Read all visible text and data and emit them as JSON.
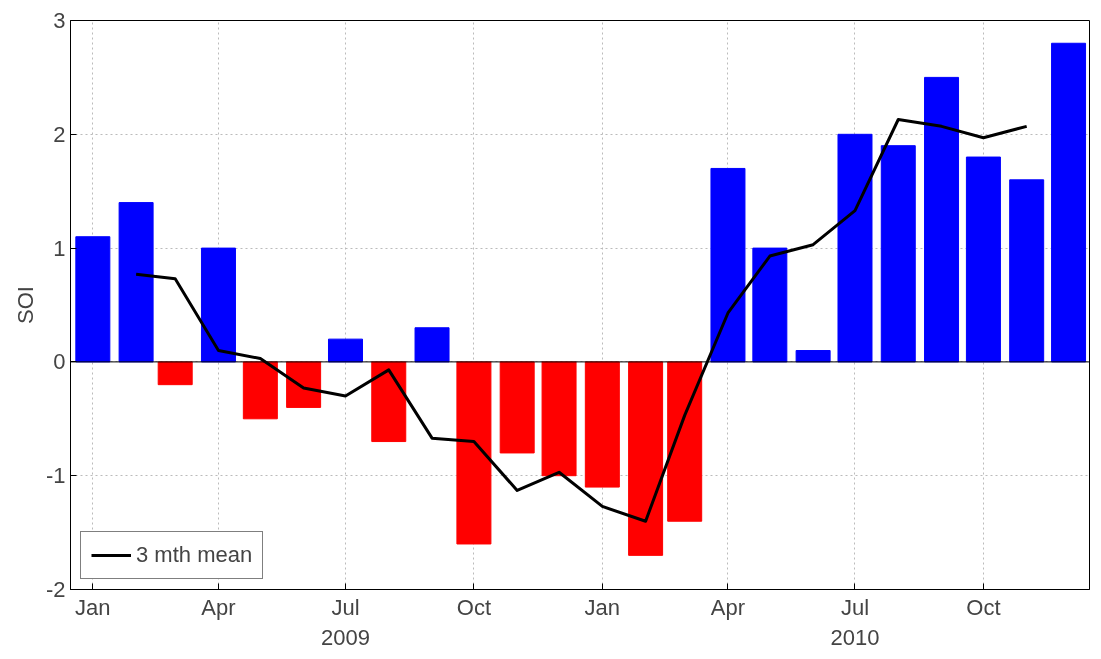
{
  "chart_data": {
    "type": "bar",
    "ylabel": "SOI",
    "x": [
      "2009-01",
      "2009-02",
      "2009-03",
      "2009-04",
      "2009-05",
      "2009-06",
      "2009-07",
      "2009-08",
      "2009-09",
      "2009-10",
      "2009-11",
      "2009-12",
      "2010-01",
      "2010-02",
      "2010-03",
      "2010-04",
      "2010-05",
      "2010-06",
      "2010-07",
      "2010-08",
      "2010-09",
      "2010-10",
      "2010-11",
      "2010-12"
    ],
    "series": [
      {
        "values": [
          1.1,
          1.4,
          -0.2,
          1.0,
          -0.5,
          -0.4,
          0.2,
          -0.7,
          0.3,
          -1.6,
          -0.8,
          -1.0,
          -1.1,
          -1.7,
          -1.4,
          1.7,
          1.0,
          0.1,
          2.0,
          1.9,
          2.5,
          1.8,
          1.6,
          2.8
        ],
        "colors": [
          "#0000ff",
          "#0000ff",
          "#ff0000",
          "#0000ff",
          "#ff0000",
          "#ff0000",
          "#0000ff",
          "#ff0000",
          "#0000ff",
          "#ff0000",
          "#ff0000",
          "#ff0000",
          "#ff0000",
          "#ff0000",
          "#ff0000",
          "#0000ff",
          "#0000ff",
          "#0000ff",
          "#0000ff",
          "#0000ff",
          "#0000ff",
          "#0000ff",
          "#0000ff",
          "#0000ff"
        ]
      },
      {
        "type": "line",
        "name": "3 mth mean",
        "color": "#000000",
        "x": [
          "2009-02",
          "2009-03",
          "2009-04",
          "2009-05",
          "2009-06",
          "2009-07",
          "2009-08",
          "2009-09",
          "2009-10",
          "2009-11",
          "2009-12",
          "2010-01",
          "2010-02",
          "2010-03",
          "2010-04",
          "2010-05",
          "2010-06",
          "2010-07",
          "2010-08",
          "2010-09",
          "2010-10",
          "2010-11"
        ],
        "values": [
          0.77,
          0.73,
          0.1,
          0.03,
          -0.23,
          -0.3,
          -0.07,
          -0.67,
          -0.7,
          -1.13,
          -0.97,
          -1.27,
          -1.4,
          -0.47,
          0.43,
          0.93,
          1.03,
          1.33,
          2.13,
          2.07,
          1.97,
          2.07
        ]
      }
    ],
    "xlim": [
      "2008-12-16",
      "2010-12-16"
    ],
    "xticks": [
      {
        "value": "2009-01",
        "label": "Jan"
      },
      {
        "value": "2009-04",
        "label": "Apr"
      },
      {
        "value": "2009-07",
        "label": "Jul\n2009"
      },
      {
        "value": "2009-10",
        "label": "Oct"
      },
      {
        "value": "2010-01",
        "label": "Jan"
      },
      {
        "value": "2010-04",
        "label": "Apr"
      },
      {
        "value": "2010-07",
        "label": "Jul\n2010"
      },
      {
        "value": "2010-10",
        "label": "Oct"
      }
    ],
    "ylim": [
      -2,
      3
    ],
    "yticks": [
      -2,
      -1,
      0,
      1,
      2,
      3
    ],
    "grid": true,
    "legend": "bottom left",
    "line_style": "solid",
    "marker": "none"
  }
}
